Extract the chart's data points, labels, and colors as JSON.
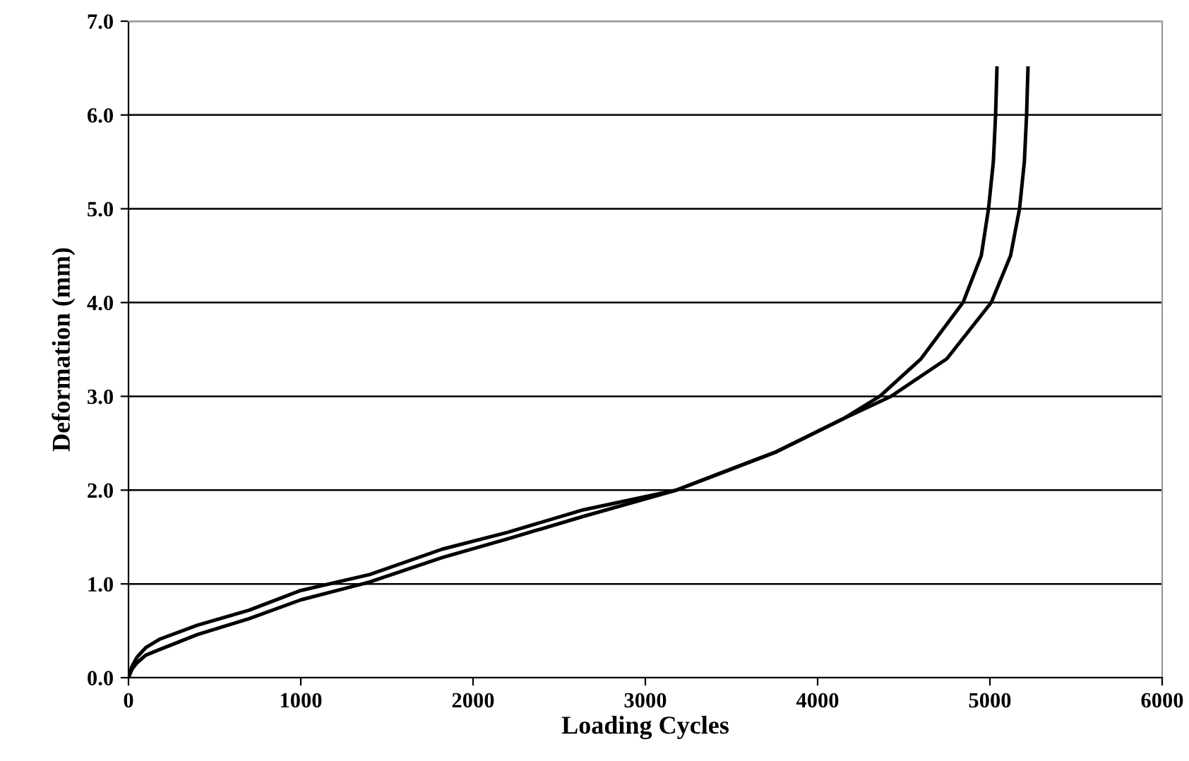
{
  "chart_data": {
    "type": "line",
    "xlabel": "Loading Cycles",
    "ylabel": "Deformation (mm)",
    "series": [
      {
        "color": "#000000",
        "x": [
          0,
          20,
          50,
          100,
          180,
          400,
          700,
          1000,
          1400,
          1820,
          2200,
          2640,
          3180,
          3762,
          4148,
          4361,
          4600,
          4844,
          4950,
          4992,
          5020,
          5033,
          5041
        ],
        "values": [
          0,
          0.12,
          0.22,
          0.32,
          0.41,
          0.56,
          0.72,
          0.93,
          1.1,
          1.37,
          1.55,
          1.79,
          2.0,
          2.41,
          2.76,
          3.0,
          3.4,
          4.0,
          4.5,
          5.0,
          5.5,
          6.0,
          6.5
        ]
      },
      {
        "color": "#000000",
        "x": [
          0,
          20,
          50,
          100,
          180,
          400,
          700,
          1000,
          1400,
          1820,
          2200,
          2640,
          3180,
          3762,
          4148,
          4426,
          4750,
          5008,
          5120,
          5172,
          5200,
          5213,
          5221
        ],
        "values": [
          0,
          0.09,
          0.16,
          0.24,
          0.3,
          0.46,
          0.63,
          0.83,
          1.02,
          1.28,
          1.48,
          1.72,
          2.0,
          2.41,
          2.76,
          3.0,
          3.4,
          4.0,
          4.5,
          5.0,
          5.5,
          6.0,
          6.5
        ]
      }
    ],
    "xlim": [
      0,
      6000
    ],
    "xticks": [
      0,
      1000,
      2000,
      3000,
      4000,
      5000,
      6000
    ],
    "ylim": [
      0,
      7
    ],
    "yticks": [
      {
        "value": 0,
        "label": "0.0"
      },
      {
        "value": 1,
        "label": "1.0"
      },
      {
        "value": 2,
        "label": "2.0"
      },
      {
        "value": 3,
        "label": "3.0"
      },
      {
        "value": 4,
        "label": "4.0"
      },
      {
        "value": 5,
        "label": "5.0"
      },
      {
        "value": 6,
        "label": "6.0"
      },
      {
        "value": 7,
        "label": "7.0"
      }
    ],
    "grid": "y",
    "line_style": "solid",
    "marker": "none"
  }
}
